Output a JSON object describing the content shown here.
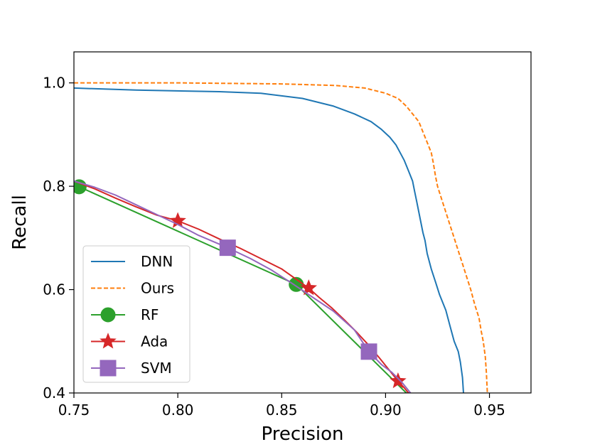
{
  "chart_data": {
    "type": "line",
    "title": "",
    "xlabel": "Precision",
    "ylabel": "Recall",
    "xlim": [
      0.75,
      0.97
    ],
    "ylim": [
      0.4,
      1.06
    ],
    "xticks": [
      0.75,
      0.8,
      0.85,
      0.9,
      0.95
    ],
    "xtick_labels": [
      "0.75",
      "0.80",
      "0.85",
      "0.90",
      "0.95"
    ],
    "yticks": [
      0.4,
      0.6,
      0.8,
      1.0
    ],
    "ytick_labels": [
      "0.4",
      "0.6",
      "0.8",
      "1.0"
    ],
    "grid": false,
    "legend_position": "lower-left",
    "series": [
      {
        "name": "DNN",
        "color": "#1f77b4",
        "dash": "solid",
        "marker": "none",
        "x": [
          0.75,
          0.78,
          0.82,
          0.84,
          0.86,
          0.875,
          0.885,
          0.893,
          0.898,
          0.902,
          0.905,
          0.907,
          0.909,
          0.911,
          0.913,
          0.914,
          0.915,
          0.916,
          0.917,
          0.918,
          0.919,
          0.92,
          0.922,
          0.924,
          0.926,
          0.929,
          0.931,
          0.933,
          0.935,
          0.936,
          0.937,
          0.9375
        ],
        "y": [
          0.99,
          0.986,
          0.983,
          0.98,
          0.97,
          0.955,
          0.94,
          0.925,
          0.91,
          0.895,
          0.88,
          0.865,
          0.85,
          0.83,
          0.81,
          0.79,
          0.77,
          0.75,
          0.73,
          0.71,
          0.695,
          0.67,
          0.64,
          0.615,
          0.59,
          0.56,
          0.53,
          0.5,
          0.48,
          0.46,
          0.43,
          0.4
        ]
      },
      {
        "name": "Ours",
        "color": "#ff7f0e",
        "dash": "dashed",
        "marker": "none",
        "x": [
          0.75,
          0.8,
          0.85,
          0.876,
          0.89,
          0.9,
          0.906,
          0.91,
          0.913,
          0.916,
          0.918,
          0.92,
          0.922,
          0.923,
          0.924,
          0.925,
          0.927,
          0.929,
          0.931,
          0.933,
          0.935,
          0.937,
          0.939,
          0.941,
          0.943,
          0.945,
          0.946,
          0.947,
          0.948,
          0.9485,
          0.949
        ],
        "y": [
          1.0,
          1.0,
          0.998,
          0.995,
          0.99,
          0.98,
          0.97,
          0.955,
          0.94,
          0.925,
          0.905,
          0.885,
          0.865,
          0.845,
          0.82,
          0.8,
          0.775,
          0.75,
          0.725,
          0.7,
          0.675,
          0.65,
          0.625,
          0.6,
          0.57,
          0.545,
          0.52,
          0.5,
          0.47,
          0.44,
          0.4
        ]
      },
      {
        "name": "RF",
        "color": "#2ca02c",
        "dash": "solid",
        "marker": "circle",
        "x": [
          0.7525,
          0.857,
          0.91
        ],
        "y": [
          0.799,
          0.61,
          0.4
        ],
        "marker_x": [
          0.7525,
          0.857
        ],
        "marker_y": [
          0.799,
          0.61
        ]
      },
      {
        "name": "Ada",
        "color": "#d62728",
        "dash": "solid",
        "marker": "star",
        "x": [
          0.75,
          0.76,
          0.77,
          0.78,
          0.79,
          0.8,
          0.81,
          0.82,
          0.83,
          0.84,
          0.85,
          0.857,
          0.863,
          0.868,
          0.874,
          0.88,
          0.886,
          0.892,
          0.897,
          0.902,
          0.906,
          0.909,
          0.911
        ],
        "y": [
          0.81,
          0.795,
          0.777,
          0.76,
          0.744,
          0.733,
          0.717,
          0.698,
          0.68,
          0.66,
          0.64,
          0.62,
          0.603,
          0.585,
          0.565,
          0.542,
          0.518,
          0.492,
          0.468,
          0.443,
          0.423,
          0.41,
          0.4
        ],
        "marker_x": [
          0.8,
          0.863,
          0.906
        ],
        "marker_y": [
          0.733,
          0.603,
          0.423
        ]
      },
      {
        "name": "SVM",
        "color": "#9467bd",
        "dash": "solid",
        "marker": "square",
        "x": [
          0.75,
          0.76,
          0.77,
          0.78,
          0.79,
          0.8,
          0.81,
          0.824,
          0.835,
          0.845,
          0.855,
          0.865,
          0.875,
          0.885,
          0.892,
          0.898,
          0.903,
          0.908,
          0.912
        ],
        "y": [
          0.81,
          0.798,
          0.783,
          0.764,
          0.745,
          0.726,
          0.705,
          0.681,
          0.66,
          0.638,
          0.612,
          0.585,
          0.558,
          0.522,
          0.48,
          0.455,
          0.44,
          0.42,
          0.4
        ],
        "marker_x": [
          0.824,
          0.892
        ],
        "marker_y": [
          0.681,
          0.48
        ]
      }
    ]
  }
}
